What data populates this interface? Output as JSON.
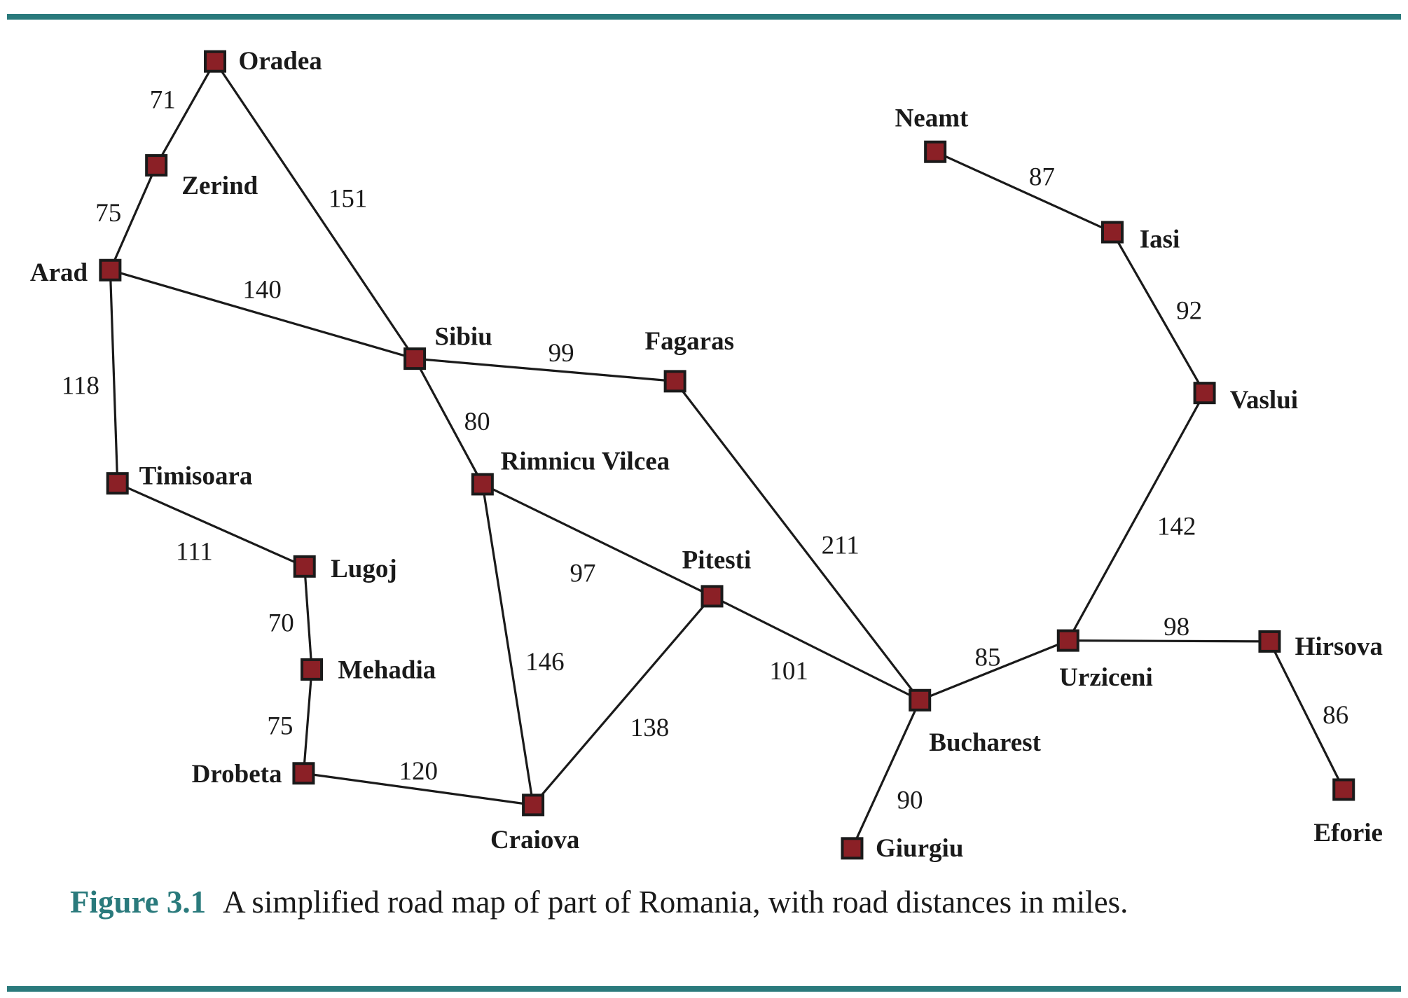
{
  "colors": {
    "rule": "#2a7a7c",
    "node_fill": "#8b2026",
    "node_stroke": "#1a1a1a",
    "road": "#1a1a1a"
  },
  "cities": [
    {
      "id": "oradea",
      "name": "Oradea"
    },
    {
      "id": "zerind",
      "name": "Zerind"
    },
    {
      "id": "arad",
      "name": "Arad"
    },
    {
      "id": "timisoara",
      "name": "Timisoara"
    },
    {
      "id": "lugoj",
      "name": "Lugoj"
    },
    {
      "id": "mehadia",
      "name": "Mehadia"
    },
    {
      "id": "drobeta",
      "name": "Drobeta"
    },
    {
      "id": "craiova",
      "name": "Craiova"
    },
    {
      "id": "sibiu",
      "name": "Sibiu"
    },
    {
      "id": "rimnicu-vilcea",
      "name": "Rimnicu Vilcea"
    },
    {
      "id": "fagaras",
      "name": "Fagaras"
    },
    {
      "id": "pitesti",
      "name": "Pitesti"
    },
    {
      "id": "bucharest",
      "name": "Bucharest"
    },
    {
      "id": "giurgiu",
      "name": "Giurgiu"
    },
    {
      "id": "urziceni",
      "name": "Urziceni"
    },
    {
      "id": "hirsova",
      "name": "Hirsova"
    },
    {
      "id": "eforie",
      "name": "Eforie"
    },
    {
      "id": "vaslui",
      "name": "Vaslui"
    },
    {
      "id": "iasi",
      "name": "Iasi"
    },
    {
      "id": "neamt",
      "name": "Neamt"
    }
  ],
  "roads": [
    {
      "from": "oradea",
      "to": "zerind",
      "distance": "71"
    },
    {
      "from": "zerind",
      "to": "arad",
      "distance": "75"
    },
    {
      "from": "oradea",
      "to": "sibiu",
      "distance": "151"
    },
    {
      "from": "arad",
      "to": "sibiu",
      "distance": "140"
    },
    {
      "from": "arad",
      "to": "timisoara",
      "distance": "118"
    },
    {
      "from": "timisoara",
      "to": "lugoj",
      "distance": "111"
    },
    {
      "from": "lugoj",
      "to": "mehadia",
      "distance": "70"
    },
    {
      "from": "mehadia",
      "to": "drobeta",
      "distance": "75"
    },
    {
      "from": "drobeta",
      "to": "craiova",
      "distance": "120"
    },
    {
      "from": "sibiu",
      "to": "fagaras",
      "distance": "99"
    },
    {
      "from": "sibiu",
      "to": "rimnicu-vilcea",
      "distance": "80"
    },
    {
      "from": "rimnicu-vilcea",
      "to": "pitesti",
      "distance": "97"
    },
    {
      "from": "rimnicu-vilcea",
      "to": "craiova",
      "distance": "146"
    },
    {
      "from": "craiova",
      "to": "pitesti",
      "distance": "138"
    },
    {
      "from": "pitesti",
      "to": "bucharest",
      "distance": "101"
    },
    {
      "from": "fagaras",
      "to": "bucharest",
      "distance": "211"
    },
    {
      "from": "bucharest",
      "to": "giurgiu",
      "distance": "90"
    },
    {
      "from": "bucharest",
      "to": "urziceni",
      "distance": "85"
    },
    {
      "from": "urziceni",
      "to": "hirsova",
      "distance": "98"
    },
    {
      "from": "hirsova",
      "to": "eforie",
      "distance": "86"
    },
    {
      "from": "urziceni",
      "to": "vaslui",
      "distance": "142"
    },
    {
      "from": "vaslui",
      "to": "iasi",
      "distance": "92"
    },
    {
      "from": "iasi",
      "to": "neamt",
      "distance": "87"
    }
  ],
  "caption": {
    "number": "Figure 3.1",
    "text": "A simplified road map of part of Romania, with road distances in miles."
  }
}
